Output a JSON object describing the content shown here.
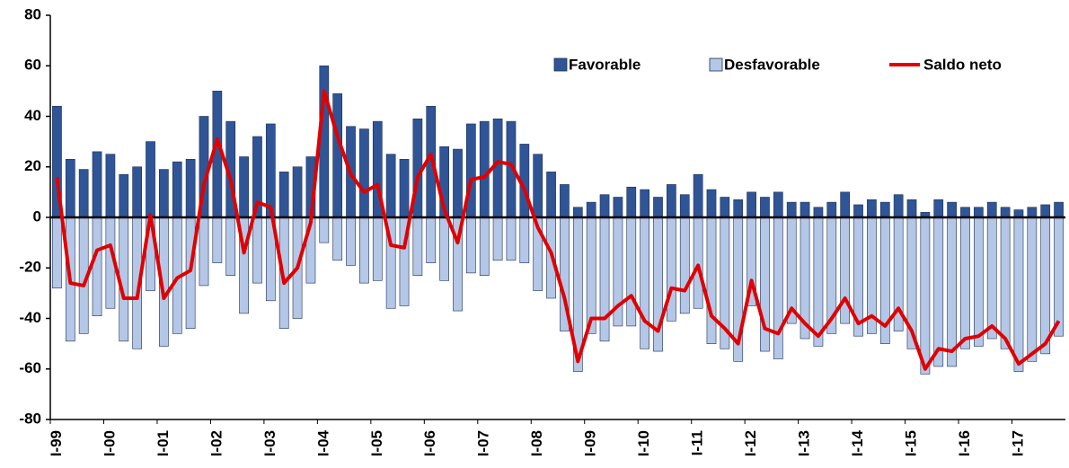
{
  "chart_data": {
    "type": "bar-line",
    "categories": [
      "I-99",
      null,
      null,
      null,
      "I-00",
      null,
      null,
      null,
      "I-01",
      null,
      null,
      null,
      "I-02",
      null,
      null,
      null,
      "I-03",
      null,
      null,
      null,
      "I-04",
      null,
      null,
      null,
      "I-05",
      null,
      null,
      null,
      "I-06",
      null,
      null,
      null,
      "I-07",
      null,
      null,
      null,
      "I-08",
      null,
      null,
      null,
      "I-09",
      null,
      null,
      null,
      "I-10",
      null,
      null,
      null,
      "I-11",
      null,
      null,
      null,
      "I-12",
      null,
      null,
      null,
      "I-13",
      null,
      null,
      null,
      "I-14",
      null,
      null,
      null,
      "I-15",
      null,
      null,
      null,
      "I-16",
      null,
      null,
      null,
      "I-17",
      null,
      null,
      null
    ],
    "series": [
      {
        "name": "Favorable",
        "type": "bar",
        "color": "#2f5597",
        "values": [
          44,
          23,
          19,
          26,
          25,
          17,
          20,
          30,
          19,
          22,
          23,
          40,
          50,
          38,
          24,
          32,
          37,
          18,
          20,
          24,
          60,
          49,
          36,
          35,
          38,
          25,
          23,
          39,
          44,
          28,
          27,
          37,
          38,
          39,
          38,
          29,
          25,
          18,
          13,
          4,
          6,
          9,
          8,
          12,
          11,
          8,
          13,
          9,
          17,
          11,
          8,
          7,
          10,
          8,
          10,
          6,
          6,
          4,
          6,
          10,
          5,
          7,
          6,
          9,
          7,
          2,
          7,
          6,
          4,
          4,
          6,
          4,
          3,
          4,
          5,
          6
        ]
      },
      {
        "name": "Desfavorable",
        "type": "bar",
        "color": "#b4c7e7",
        "values": [
          -28,
          -49,
          -46,
          -39,
          -36,
          -49,
          -52,
          -29,
          -51,
          -46,
          -44,
          -27,
          -18,
          -23,
          -38,
          -26,
          -33,
          -44,
          -40,
          -26,
          -10,
          -17,
          -19,
          -26,
          -25,
          -36,
          -35,
          -23,
          -18,
          -25,
          -37,
          -22,
          -23,
          -17,
          -17,
          -18,
          -29,
          -32,
          -45,
          -61,
          -46,
          -49,
          -43,
          -43,
          -52,
          -53,
          -41,
          -38,
          -36,
          -50,
          -52,
          -57,
          -35,
          -53,
          -56,
          -42,
          -48,
          -51,
          -46,
          -42,
          -47,
          -46,
          -50,
          -45,
          -52,
          -62,
          -59,
          -59,
          -52,
          -51,
          -48,
          -52,
          -61,
          -57,
          -54,
          -47
        ]
      },
      {
        "name": "Saldo neto",
        "type": "line",
        "color": "#e00000",
        "values": [
          16,
          -26,
          -27,
          -13,
          -11,
          -32,
          -32,
          1,
          -32,
          -24,
          -21,
          13,
          31,
          15,
          -14,
          6,
          4,
          -26,
          -20,
          -2,
          50,
          32,
          17,
          10,
          13,
          -11,
          -12,
          16,
          25,
          3,
          -10,
          15,
          16,
          22,
          21,
          11,
          -4,
          -14,
          -32,
          -57,
          -40,
          -40,
          -35,
          -31,
          -41,
          -45,
          -28,
          -29,
          -19,
          -39,
          -44,
          -50,
          -25,
          -44,
          -46,
          -36,
          -42,
          -47,
          -40,
          -32,
          -42,
          -39,
          -43,
          -36,
          -45,
          -60,
          -52,
          -53,
          -48,
          -47,
          -43,
          -48,
          -58,
          -54,
          -50,
          -41
        ]
      }
    ],
    "ylim": [
      -80,
      80
    ],
    "yticks": [
      -80,
      -60,
      -40,
      -20,
      0,
      20,
      40,
      60,
      80
    ]
  }
}
